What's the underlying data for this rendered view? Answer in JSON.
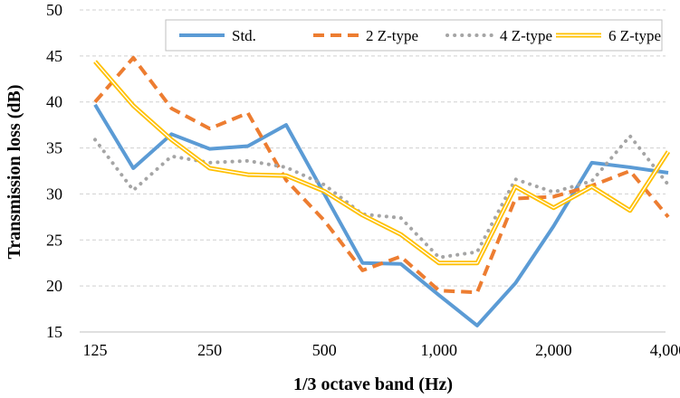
{
  "chart_data": {
    "type": "line",
    "title": "",
    "xlabel": "1/3 octave band (Hz)",
    "ylabel": "Transmission loss (dB)",
    "ylim": [
      15,
      50
    ],
    "grid": "horizontal dashed",
    "legend_position": "top-right",
    "x": [
      "125",
      "160",
      "200",
      "250",
      "315",
      "400",
      "500",
      "630",
      "800",
      "1,000",
      "1,250",
      "1,600",
      "2,000",
      "2,500",
      "3,150",
      "4,000"
    ],
    "x_tick_labels": [
      "125",
      "250",
      "500",
      "1,000",
      "2,000",
      "4,000"
    ],
    "y_tick_labels": [
      "15",
      "20",
      "25",
      "30",
      "35",
      "40",
      "45",
      "50"
    ],
    "series": [
      {
        "name": "Std.",
        "style": "solid",
        "color": "#5b9bd5",
        "values": [
          39.7,
          32.8,
          36.5,
          34.9,
          35.2,
          37.5,
          30.0,
          22.5,
          22.4,
          19.0,
          15.7,
          20.3,
          26.5,
          33.4,
          32.9,
          32.3
        ]
      },
      {
        "name": "2 Z-type",
        "style": "dashed",
        "color": "#ed7d31",
        "values": [
          40.0,
          44.8,
          39.3,
          37.1,
          38.8,
          31.5,
          27.1,
          21.7,
          23.2,
          19.5,
          19.3,
          29.5,
          29.7,
          30.9,
          32.5,
          27.5
        ]
      },
      {
        "name": "4 Z-type",
        "style": "dotted",
        "color": "#a5a5a5",
        "values": [
          35.9,
          30.4,
          34.1,
          33.4,
          33.6,
          32.9,
          31.0,
          27.8,
          27.4,
          23.1,
          23.7,
          31.6,
          30.2,
          31.4,
          36.3,
          31.0
        ]
      },
      {
        "name": "6 Z-type",
        "style": "double",
        "color": "#ffc000",
        "values": [
          44.4,
          39.6,
          35.9,
          32.8,
          32.1,
          32.0,
          30.3,
          27.7,
          25.6,
          22.5,
          22.5,
          30.8,
          28.5,
          30.8,
          28.2,
          34.6
        ]
      }
    ]
  }
}
